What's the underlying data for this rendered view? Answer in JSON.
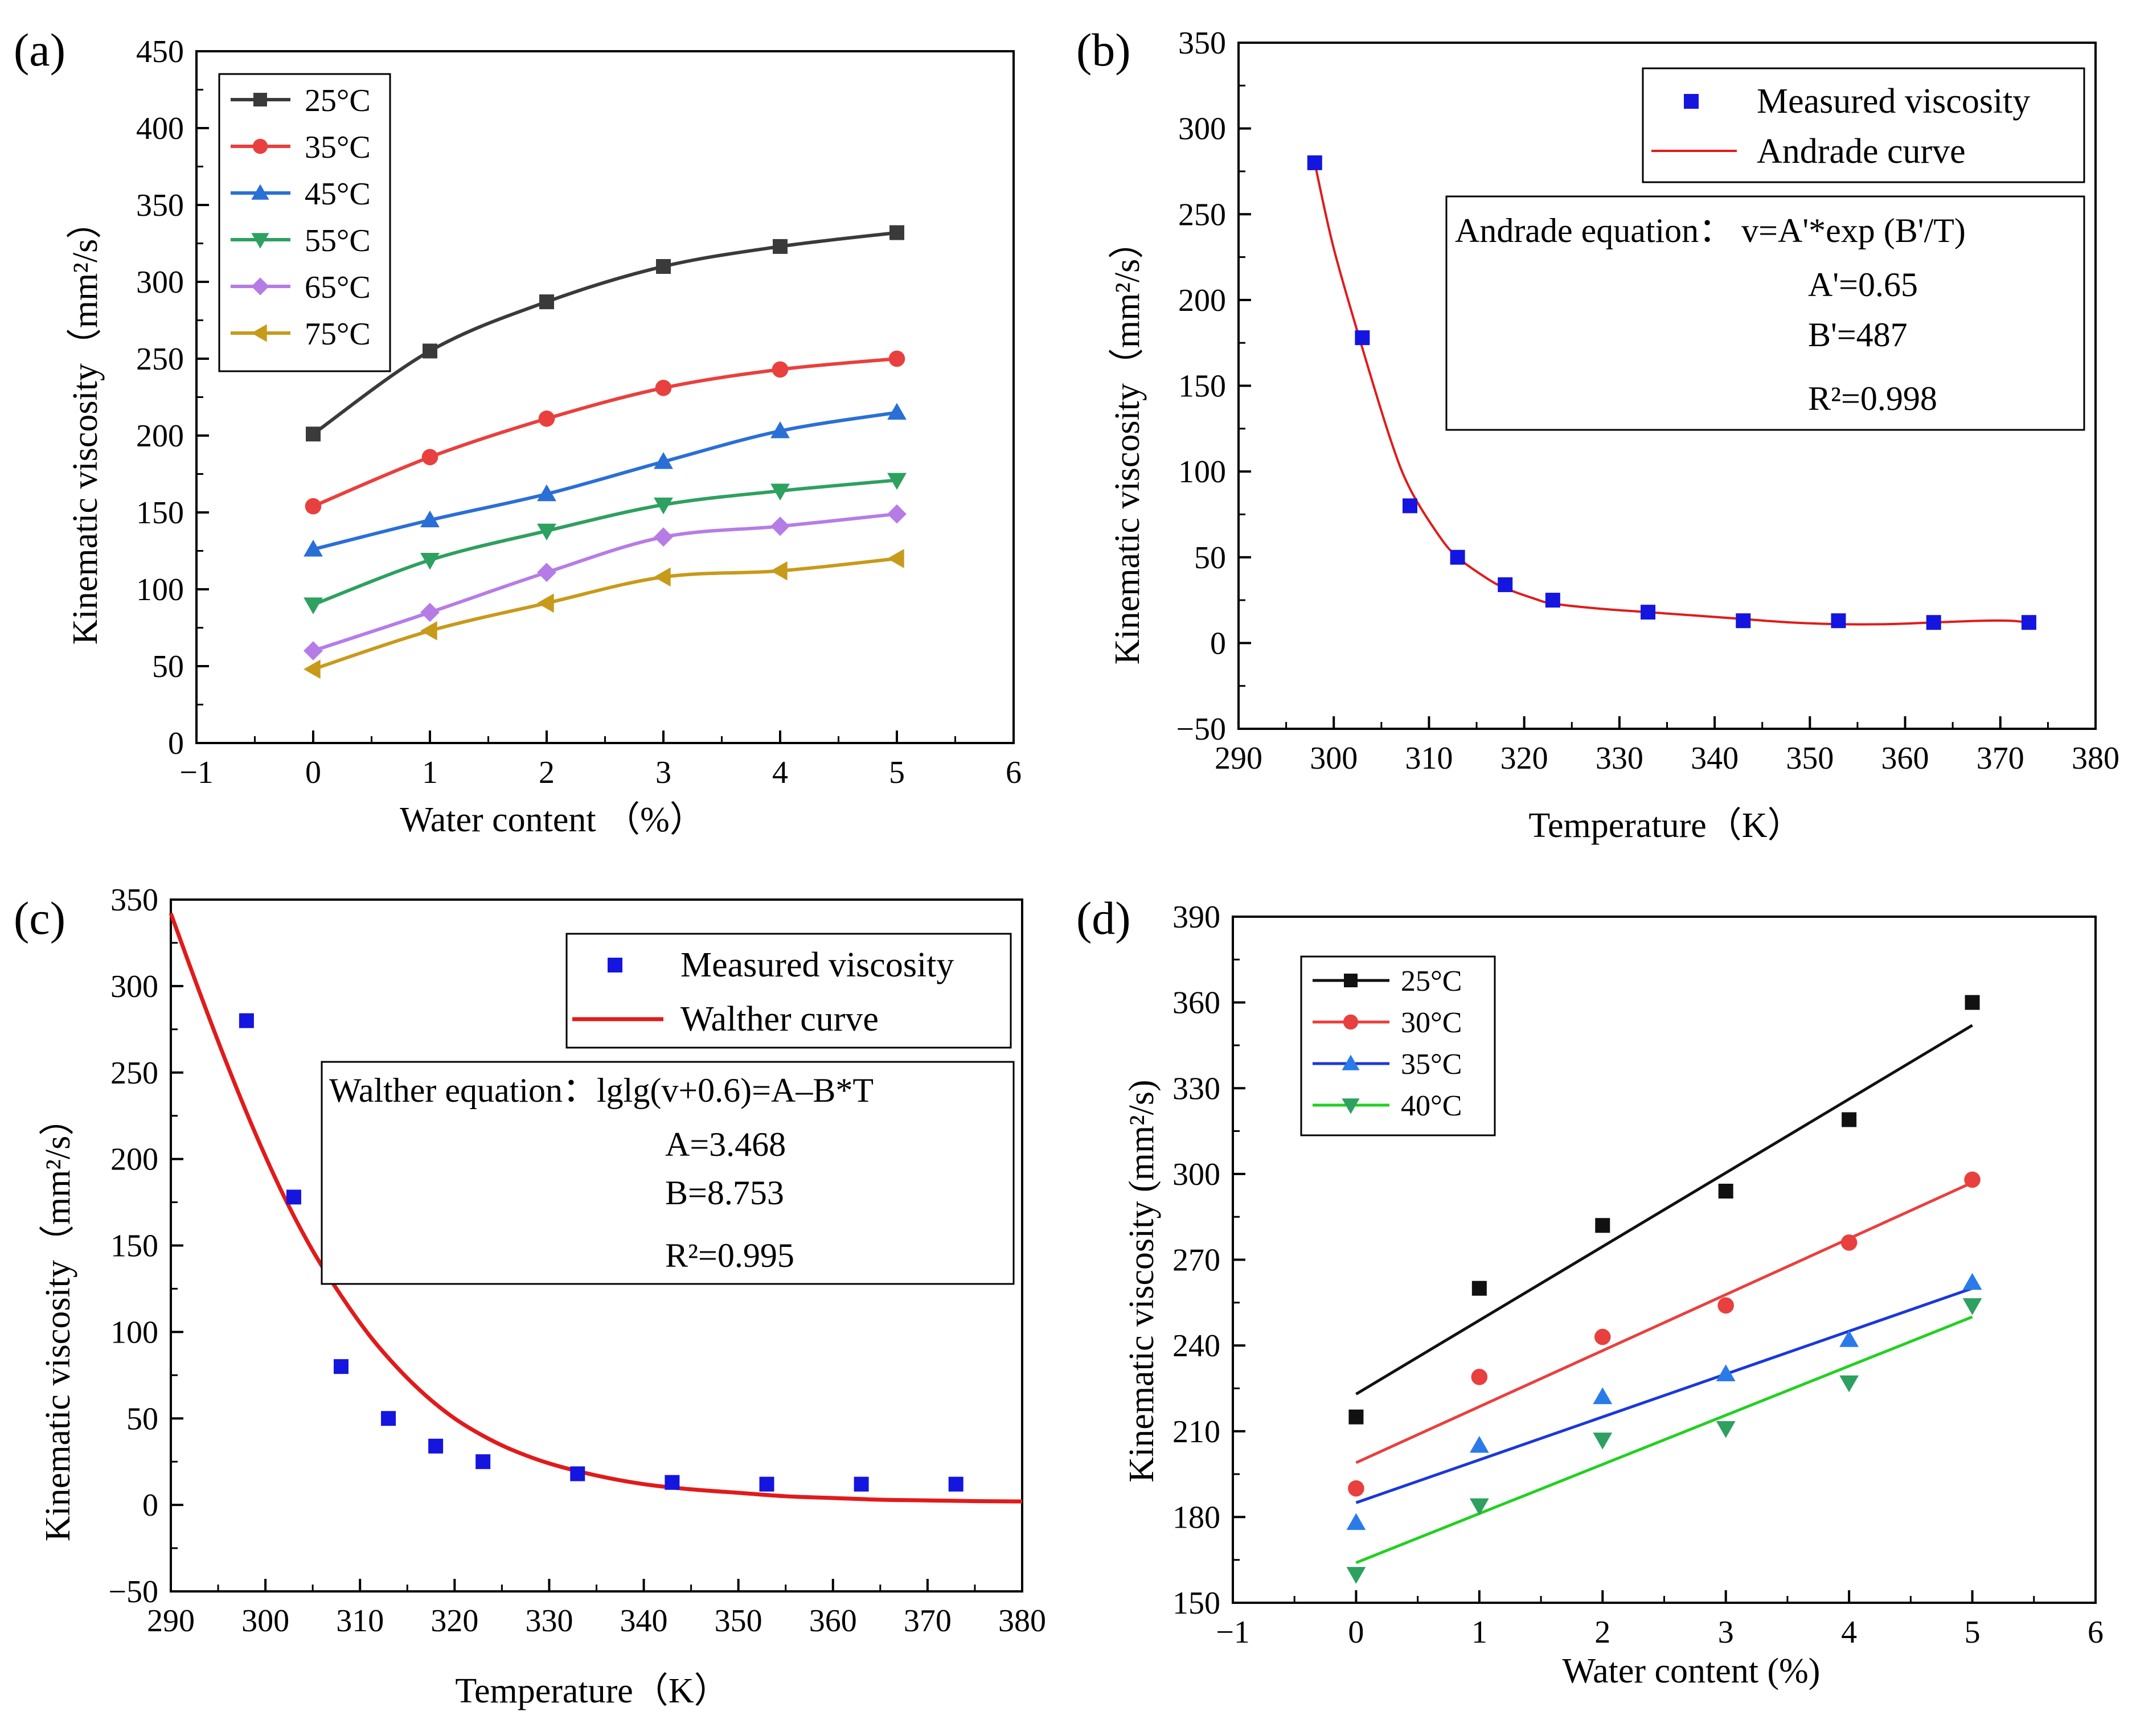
{
  "figure": {
    "panels": [
      {
        "label": "(a)"
      },
      {
        "label": "(b)"
      },
      {
        "label": "(c)"
      },
      {
        "label": "(d)"
      }
    ]
  },
  "chart_data": [
    {
      "id": "a",
      "type": "line",
      "panel_label": "(a)",
      "xlabel": "Water content （%）",
      "ylabel": "Kinematic viscosity（mm²/s）",
      "xlim": [
        -1,
        6
      ],
      "ylim": [
        0,
        450
      ],
      "xticks": [
        -1,
        0,
        1,
        2,
        3,
        4,
        5,
        6
      ],
      "yticks": [
        0,
        50,
        100,
        150,
        200,
        250,
        300,
        350,
        400,
        450
      ],
      "xticklabels": [
        "−1",
        "0",
        "1",
        "2",
        "3",
        "4",
        "5",
        "6"
      ],
      "yticklabels": [
        "0",
        "50",
        "100",
        "150",
        "200",
        "250",
        "300",
        "350",
        "400",
        "450"
      ],
      "legend_position": "top-left",
      "x": [
        0,
        1,
        2,
        3,
        4,
        5
      ],
      "series": [
        {
          "name": "25°C",
          "color": "#3a3a3a",
          "marker": "square",
          "values": [
            201,
            255,
            287,
            310,
            323,
            332
          ]
        },
        {
          "name": "35°C",
          "color": "#e8403e",
          "marker": "circle",
          "values": [
            154,
            186,
            211,
            231,
            243,
            250
          ]
        },
        {
          "name": "45°C",
          "color": "#2a6fd6",
          "marker": "triangle-up",
          "values": [
            126,
            145,
            162,
            183,
            203,
            215
          ]
        },
        {
          "name": "55°C",
          "color": "#2ea060",
          "marker": "triangle-down",
          "values": [
            90,
            119,
            138,
            155,
            164,
            171
          ]
        },
        {
          "name": "65°C",
          "color": "#b67ce6",
          "marker": "diamond",
          "values": [
            60,
            85,
            111,
            134,
            141,
            149
          ]
        },
        {
          "name": "75°C",
          "color": "#c89a1a",
          "marker": "triangle-left",
          "values": [
            48,
            73,
            91,
            108,
            112,
            120
          ]
        }
      ]
    },
    {
      "id": "b",
      "type": "scatter",
      "panel_label": "(b)",
      "xlabel": "Temperature（K）",
      "ylabel": "Kinematic viscosity（mm²/s）",
      "xlim": [
        290,
        380
      ],
      "ylim": [
        -50,
        350
      ],
      "xticks": [
        290,
        300,
        310,
        320,
        330,
        340,
        350,
        360,
        370,
        380
      ],
      "yticks": [
        -50,
        0,
        50,
        100,
        150,
        200,
        250,
        300,
        350
      ],
      "xticklabels": [
        "290",
        "300",
        "310",
        "320",
        "330",
        "340",
        "350",
        "360",
        "370",
        "380"
      ],
      "yticklabels": [
        "−50",
        "0",
        "50",
        "100",
        "150",
        "200",
        "250",
        "300",
        "350"
      ],
      "legend_position": "top-right",
      "series": [
        {
          "name": "Measured viscosity",
          "color": "#1515e0",
          "marker": "square",
          "x": [
            298,
            303,
            308,
            313,
            318,
            323,
            333,
            343,
            353,
            363,
            373
          ],
          "y": [
            280,
            178,
            80,
            50,
            34,
            25,
            18,
            13,
            13,
            12,
            12
          ]
        },
        {
          "name": "Andrade curve",
          "color": "#e01b1b",
          "kind": "line",
          "x": [
            298,
            300,
            303,
            306,
            308,
            311,
            313,
            316,
            318,
            321,
            323,
            328,
            333,
            338,
            343,
            348,
            353,
            358,
            363,
            368,
            371,
            373
          ],
          "y": [
            280,
            230,
            172,
            118,
            90,
            63,
            50,
            38,
            32,
            26,
            23,
            20,
            18,
            16,
            14,
            12,
            11,
            11,
            12,
            13,
            13,
            12
          ]
        }
      ],
      "equation_box": {
        "lines": [
          "Andrade  equation：  v=A'*exp (B'/T)",
          "A'=0.65",
          "B'=487",
          "R²=0.998"
        ]
      }
    },
    {
      "id": "c",
      "type": "scatter",
      "panel_label": "(c)",
      "xlabel": "Temperature（K）",
      "ylabel": "Kinematic viscosity（mm²/s）",
      "xlim": [
        290,
        380
      ],
      "ylim": [
        -50,
        350
      ],
      "xticks": [
        290,
        300,
        310,
        320,
        330,
        340,
        350,
        360,
        370,
        380
      ],
      "yticks": [
        -50,
        0,
        50,
        100,
        150,
        200,
        250,
        300,
        350
      ],
      "xticklabels": [
        "290",
        "300",
        "310",
        "320",
        "330",
        "340",
        "350",
        "360",
        "370",
        "380"
      ],
      "yticklabels": [
        "−50",
        "0",
        "50",
        "100",
        "150",
        "200",
        "250",
        "300",
        "350"
      ],
      "legend_position": "top-right",
      "series": [
        {
          "name": "Measured viscosity",
          "color": "#1515e0",
          "marker": "square",
          "x": [
            298,
            303,
            308,
            313,
            318,
            323,
            333,
            343,
            353,
            363,
            373
          ],
          "y": [
            280,
            178,
            80,
            50,
            34,
            25,
            18,
            13,
            12,
            12,
            12
          ]
        },
        {
          "name": "Walther curve",
          "color": "#e01b1b",
          "kind": "line",
          "x": [
            290,
            293,
            296,
            299,
            302,
            305,
            308,
            311,
            314,
            317,
            320,
            323,
            326,
            330,
            335,
            340,
            345,
            350,
            355,
            360,
            365,
            370,
            375,
            380
          ],
          "y": [
            342,
            297,
            254,
            214,
            178,
            147,
            121,
            98,
            79,
            63,
            50,
            40,
            32,
            24,
            17,
            12,
            9,
            7,
            5,
            4,
            3,
            2.6,
            2.2,
            2
          ]
        }
      ],
      "equation_box": {
        "lines": [
          "Walther  equation：lglg(v+0.6)=A–B*T",
          "A=3.468",
          "B=8.753",
          "R²=0.995"
        ]
      }
    },
    {
      "id": "d",
      "type": "scatter",
      "panel_label": "(d)",
      "xlabel": "Water content (%)",
      "ylabel": "Kinematic viscosity (mm²/s)",
      "xlim": [
        -1,
        6
      ],
      "ylim": [
        150,
        390
      ],
      "xticks": [
        -1,
        0,
        1,
        2,
        3,
        4,
        5,
        6
      ],
      "yticks": [
        150,
        180,
        210,
        240,
        270,
        300,
        330,
        360,
        390
      ],
      "xticklabels": [
        "−1",
        "0",
        "1",
        "2",
        "3",
        "4",
        "5",
        "6"
      ],
      "yticklabels": [
        "150",
        "180",
        "210",
        "240",
        "270",
        "300",
        "330",
        "360",
        "390"
      ],
      "legend_position": "top-left",
      "x": [
        0,
        1,
        2,
        3,
        4,
        5
      ],
      "series": [
        {
          "name": "25°C",
          "color": "#111111",
          "fit_color": "#111111",
          "marker": "square",
          "values": [
            215,
            260,
            282,
            294,
            319,
            360
          ],
          "fit": [
            223,
            352
          ]
        },
        {
          "name": "30°C",
          "color": "#e8403e",
          "fit_color": "#e8403e",
          "marker": "circle",
          "values": [
            190,
            229,
            243,
            254,
            276,
            298
          ],
          "fit": [
            199,
            297
          ]
        },
        {
          "name": "35°C",
          "color": "#2a7be8",
          "fit_color": "#1a38d8",
          "marker": "triangle-up",
          "values": [
            178,
            205,
            222,
            230,
            242,
            262
          ],
          "fit": [
            185,
            260
          ]
        },
        {
          "name": "40°C",
          "color": "#2ea060",
          "fit_color": "#22d022",
          "marker": "triangle-down",
          "values": [
            160,
            184,
            207,
            211,
            227,
            254
          ],
          "fit": [
            164,
            250
          ]
        }
      ]
    }
  ]
}
